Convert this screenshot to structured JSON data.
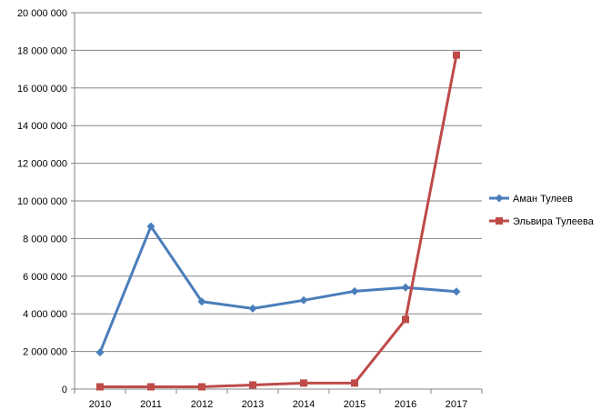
{
  "chart_data": {
    "type": "line",
    "title": "",
    "xlabel": "",
    "ylabel": "",
    "x": [
      "2010",
      "2011",
      "2012",
      "2013",
      "2014",
      "2015",
      "2016",
      "2017"
    ],
    "ylim": [
      0,
      20000000
    ],
    "ytick_labels": [
      "0",
      "2 000 000",
      "4 000 000",
      "6 000 000",
      "8 000 000",
      "10 000 000",
      "12 000 000",
      "14 000 000",
      "16 000 000",
      "18 000 000",
      "20 000 000"
    ],
    "grid": true,
    "legend_position": "right",
    "series": [
      {
        "name": "Аман Тулеев",
        "color": "#4a7ebb",
        "marker": "diamond",
        "values": [
          1950000,
          8650000,
          4650000,
          4280000,
          4720000,
          5200000,
          5400000,
          5180000
        ]
      },
      {
        "name": "Эльвира Тулеева",
        "color": "#be4b48",
        "marker": "square",
        "values": [
          120000,
          120000,
          120000,
          220000,
          320000,
          320000,
          3700000,
          17750000
        ]
      }
    ]
  }
}
